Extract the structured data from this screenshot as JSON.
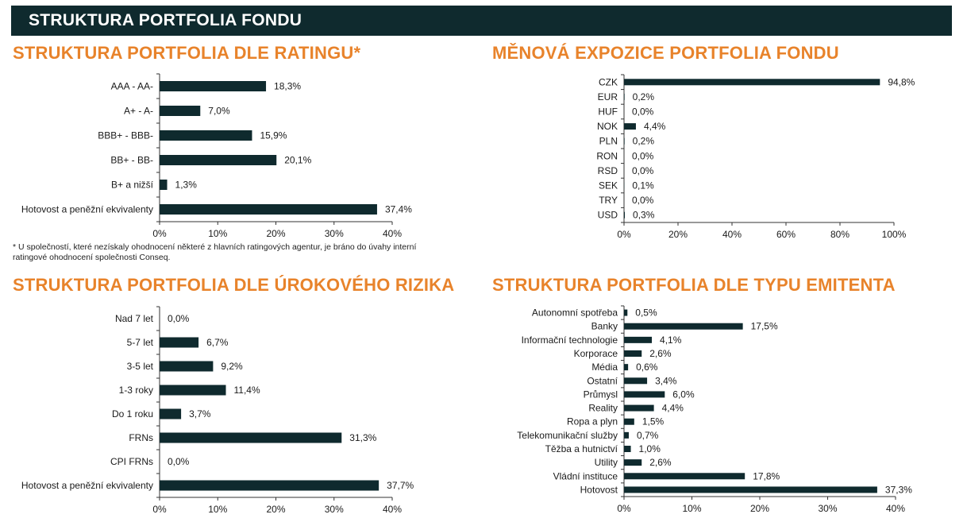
{
  "header": {
    "title": "STRUKTURA PORTFOLIA FONDU"
  },
  "colors": {
    "header_bg": "#0f2a2e",
    "title_orange": "#e8832b",
    "bar": "#0f2a2e"
  },
  "footnote": "* U společností, které nezískaly ohodnocení některé z hlavních ratingových agentur, je bráno do úvahy interní ratingové ohodnocení společnosti Conseq.",
  "chart_data": [
    {
      "id": "rating",
      "type": "bar",
      "orientation": "horizontal",
      "title": "STRUKTURA PORTFOLIA DLE RATINGU*",
      "categories": [
        "AAA - AA-",
        "A+ - A-",
        "BBB+ - BBB-",
        "BB+ - BB-",
        "B+ a nižší",
        "Hotovost a peněžní ekvivalenty"
      ],
      "values": [
        18.3,
        7.0,
        15.9,
        20.1,
        1.3,
        37.4
      ],
      "value_labels": [
        "18,3%",
        "7,0%",
        "15,9%",
        "20,1%",
        "1,3%",
        "37,4%"
      ],
      "xlim": [
        0,
        40
      ],
      "xticks": [
        "0%",
        "10%",
        "20%",
        "30%",
        "40%"
      ],
      "grid": false
    },
    {
      "id": "currency",
      "type": "bar",
      "orientation": "horizontal",
      "title": "MĚNOVÁ EXPOZICE PORTFOLIA FONDU",
      "categories": [
        "CZK",
        "EUR",
        "HUF",
        "NOK",
        "PLN",
        "RON",
        "RSD",
        "SEK",
        "TRY",
        "USD"
      ],
      "values": [
        94.8,
        0.2,
        0.0,
        4.4,
        0.2,
        0.0,
        0.0,
        0.1,
        0.0,
        0.3
      ],
      "value_labels": [
        "94,8%",
        "0,2%",
        "0,0%",
        "4,4%",
        "0,2%",
        "0,0%",
        "0,0%",
        "0,1%",
        "0,0%",
        "0,3%"
      ],
      "xlim": [
        0,
        100
      ],
      "xticks": [
        "0%",
        "20%",
        "40%",
        "60%",
        "80%",
        "100%"
      ],
      "grid": false
    },
    {
      "id": "rate",
      "type": "bar",
      "orientation": "horizontal",
      "title": "STRUKTURA PORTFOLIA DLE ÚROKOVÉHO RIZIKA",
      "categories": [
        "Nad 7 let",
        "5-7 let",
        "3-5 let",
        "1-3 roky",
        "Do 1 roku",
        "FRNs",
        "CPI FRNs",
        "Hotovost a peněžní ekvivalenty"
      ],
      "values": [
        0.0,
        6.7,
        9.2,
        11.4,
        3.7,
        31.3,
        0.0,
        37.7
      ],
      "value_labels": [
        "0,0%",
        "6,7%",
        "9,2%",
        "11,4%",
        "3,7%",
        "31,3%",
        "0,0%",
        "37,7%"
      ],
      "xlim": [
        0,
        40
      ],
      "xticks": [
        "0%",
        "10%",
        "20%",
        "30%",
        "40%"
      ],
      "grid": false
    },
    {
      "id": "issuer",
      "type": "bar",
      "orientation": "horizontal",
      "title": "STRUKTURA PORTFOLIA DLE TYPU EMITENTA",
      "categories": [
        "Autonomní spotřeba",
        "Banky",
        "Informační technologie",
        "Korporace",
        "Média",
        "Ostatní",
        "Průmysl",
        "Reality",
        "Ropa a plyn",
        "Telekomunikační služby",
        "Těžba a hutnictví",
        "Utility",
        "Vládní instituce",
        "Hotovost"
      ],
      "values": [
        0.5,
        17.5,
        4.1,
        2.6,
        0.6,
        3.4,
        6.0,
        4.4,
        1.5,
        0.7,
        1.0,
        2.6,
        17.8,
        37.3
      ],
      "value_labels": [
        "0,5%",
        "17,5%",
        "4,1%",
        "2,6%",
        "0,6%",
        "3,4%",
        "6,0%",
        "4,4%",
        "1,5%",
        "0,7%",
        "1,0%",
        "2,6%",
        "17,8%",
        "37,3%"
      ],
      "xlim": [
        0,
        40
      ],
      "xticks": [
        "0%",
        "10%",
        "20%",
        "30%",
        "40%"
      ],
      "grid": false
    }
  ]
}
